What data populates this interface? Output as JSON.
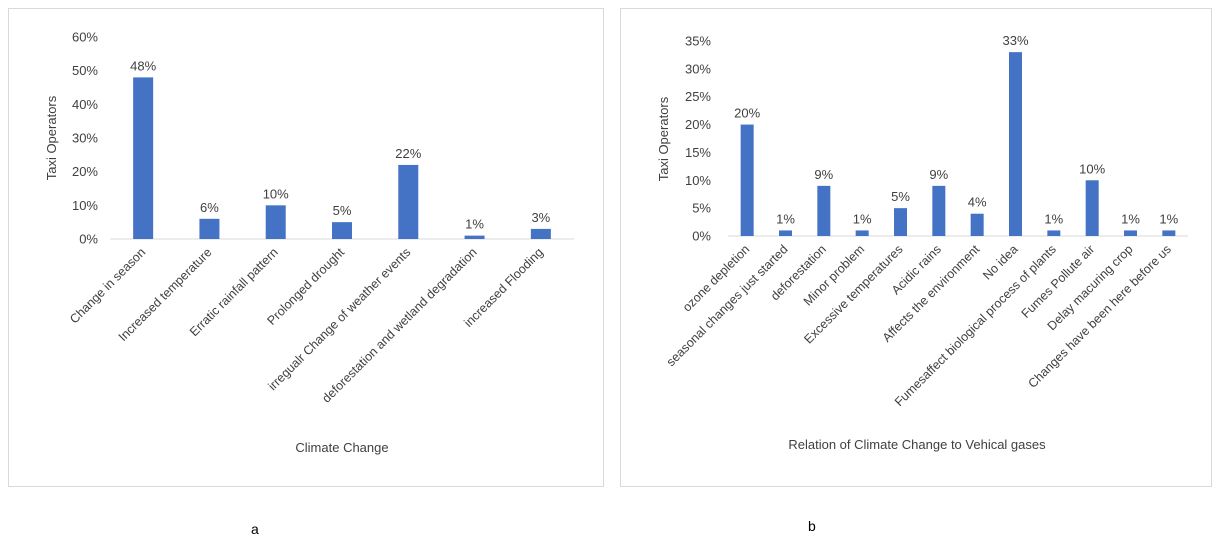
{
  "chart_data": [
    {
      "type": "bar",
      "title": "",
      "xlabel": "Climate Change",
      "ylabel": "Taxi Operators",
      "ylim": [
        0,
        60
      ],
      "yticks": [
        "0%",
        "10%",
        "20%",
        "30%",
        "40%",
        "50%",
        "60%"
      ],
      "ytick_values": [
        0,
        10,
        20,
        30,
        40,
        50,
        60
      ],
      "grid": false,
      "bar_color": "#4472C4",
      "categories": [
        "Change in season",
        "Increased temperature",
        "Erratic rainfall pattern",
        "Prolonged drought",
        "irregualr Change of weather events",
        "deforestation and wetland degradation",
        "increased  Flooding"
      ],
      "values": [
        48,
        6,
        10,
        5,
        22,
        1,
        3
      ],
      "data_labels": [
        "48%",
        "6%",
        "10%",
        "5%",
        "22%",
        "1%",
        "3%"
      ]
    },
    {
      "type": "bar",
      "title": "",
      "xlabel": "Relation of Climate Change to Vehical gases",
      "ylabel": "Taxi Operators",
      "ylim": [
        0,
        35
      ],
      "yticks": [
        "0%",
        "5%",
        "10%",
        "15%",
        "20%",
        "25%",
        "30%",
        "35%"
      ],
      "ytick_values": [
        0,
        5,
        10,
        15,
        20,
        25,
        30,
        35
      ],
      "grid": false,
      "bar_color": "#4472C4",
      "categories": [
        "ozone depletion",
        "seasonal changes just started",
        "deforestation",
        "Minor problem",
        "Excessive temperatures",
        "Acidic rains",
        "Affects the environment",
        "No idea",
        "Fumesaffect biological process of plants",
        "Fumes Pollute air",
        "Delay macuring crop",
        "Changes have been here before us"
      ],
      "values": [
        20,
        1,
        9,
        1,
        5,
        9,
        4,
        33,
        1,
        10,
        1,
        1
      ],
      "data_labels": [
        "20%",
        "1%",
        "9%",
        "1%",
        "5%",
        "9%",
        "4%",
        "33%",
        "1%",
        "10%",
        "1%",
        "1%"
      ]
    }
  ],
  "panel_labels": {
    "a": "a",
    "b": "b"
  }
}
